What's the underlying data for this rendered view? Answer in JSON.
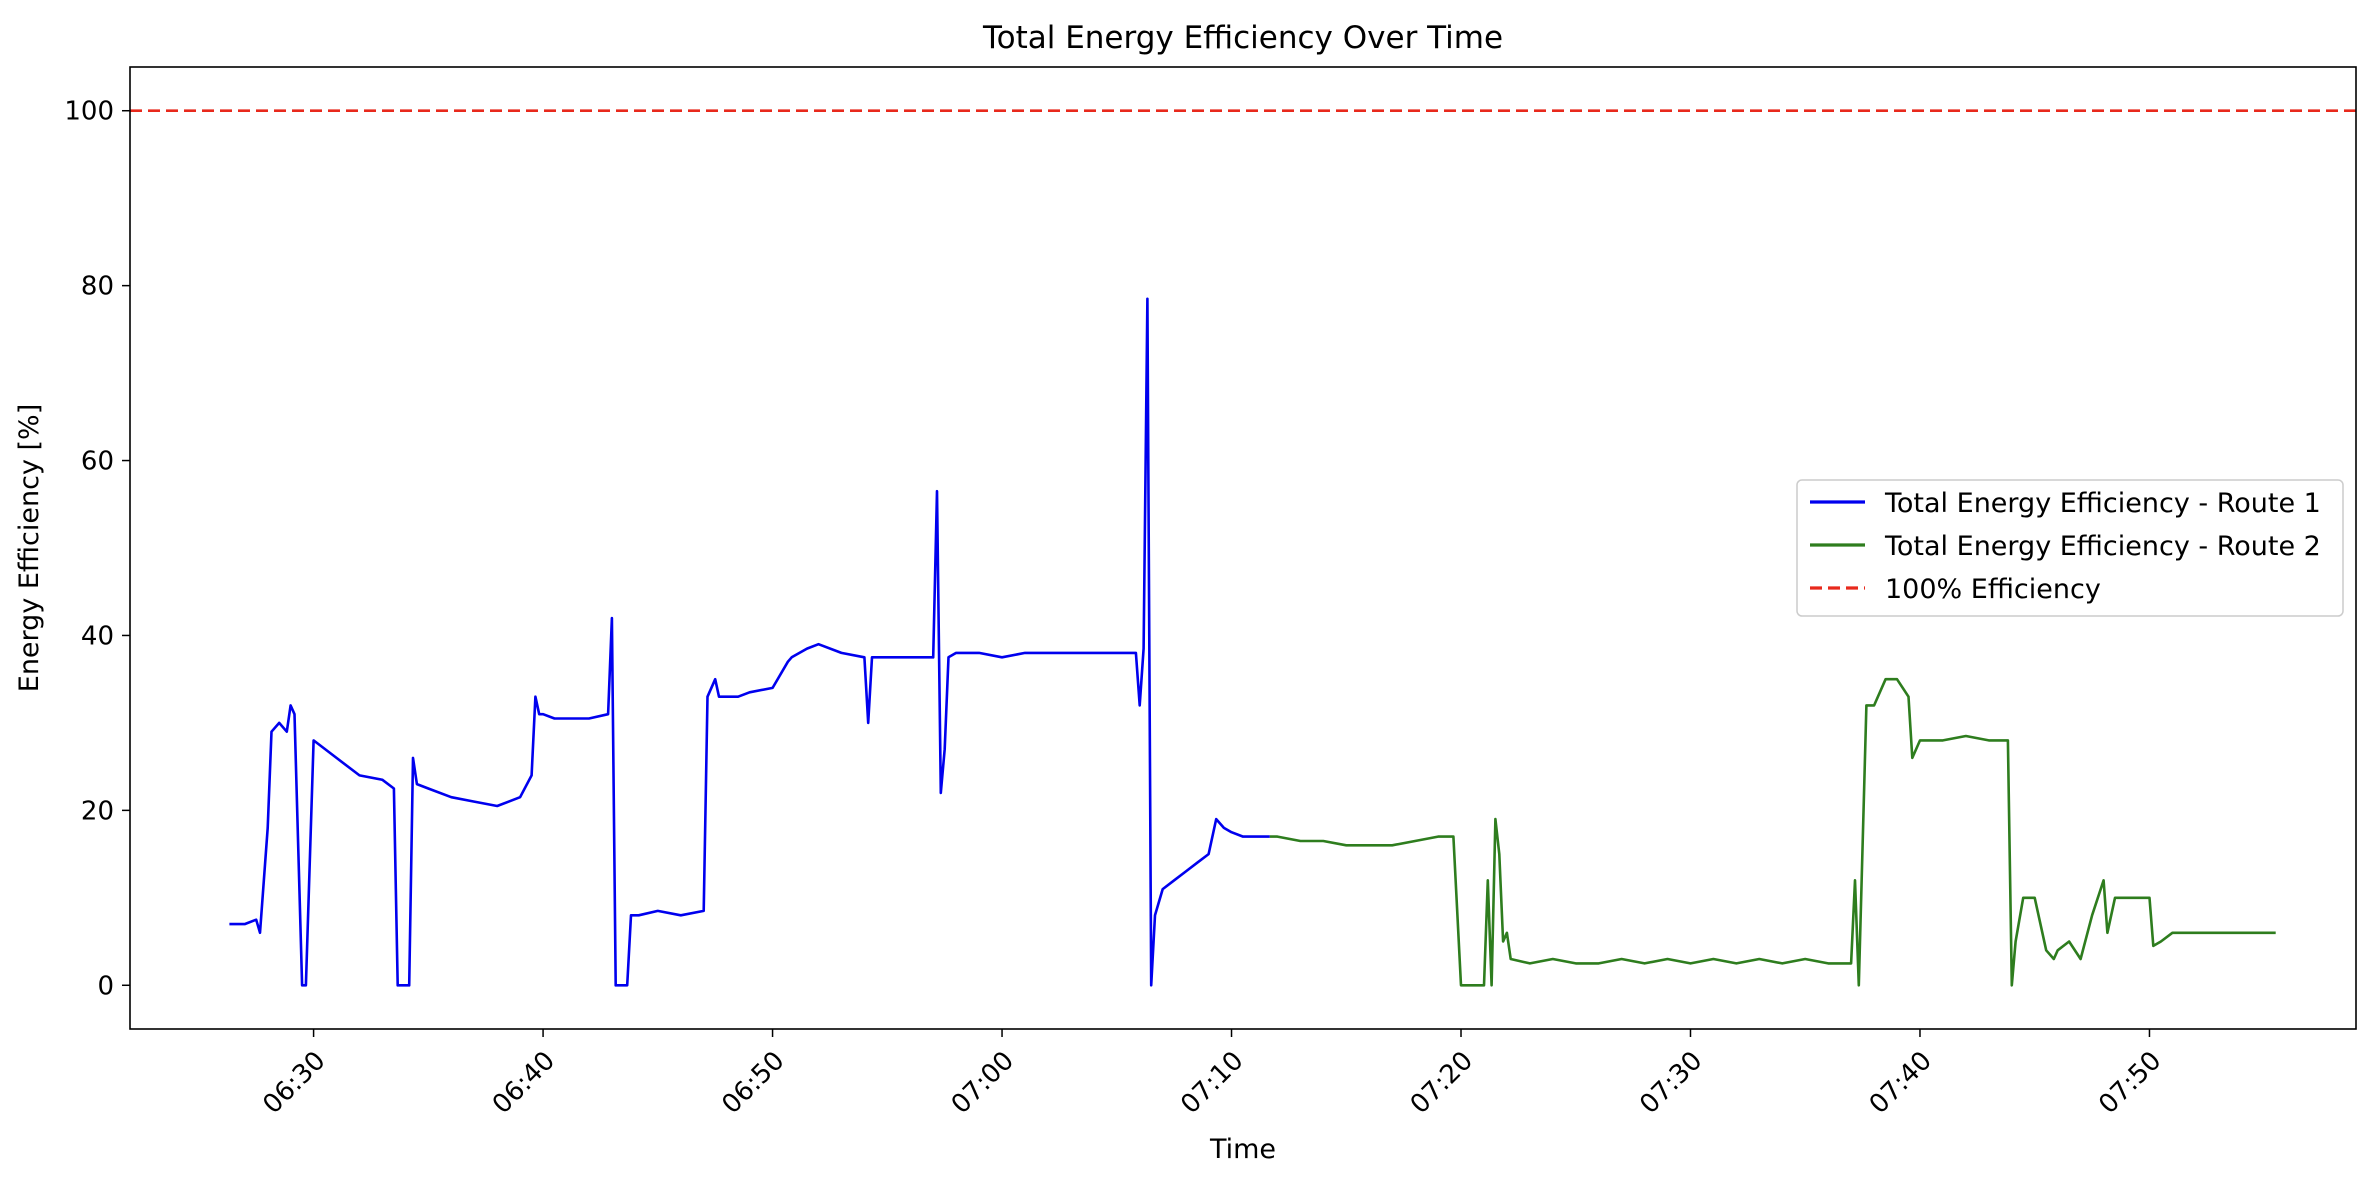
{
  "chart_data": {
    "type": "line",
    "title": "Total Energy Efficiency Over Time",
    "xlabel": "Time",
    "ylabel": "Energy Efficiency [%]",
    "xlim": [
      "06:22",
      "07:59"
    ],
    "ylim": [
      -5,
      105
    ],
    "x_ticks": [
      "06:30",
      "06:40",
      "06:50",
      "07:00",
      "07:10",
      "07:20",
      "07:30",
      "07:40",
      "07:50"
    ],
    "y_ticks": [
      0,
      20,
      40,
      60,
      80,
      100
    ],
    "legend_position": "center-right",
    "grid": false,
    "reference_line": {
      "name": "100% Efficiency",
      "y": 100,
      "color": "#e8291c",
      "style": "dashed"
    },
    "series": [
      {
        "name": "Total Energy Efficiency - Route 1",
        "color": "#0000ee",
        "x": [
          "06:26:20",
          "06:27:00",
          "06:27:30",
          "06:27:40",
          "06:28:00",
          "06:28:10",
          "06:28:30",
          "06:28:50",
          "06:29:00",
          "06:29:10",
          "06:29:30",
          "06:29:40",
          "06:30:00",
          "06:31:00",
          "06:32:00",
          "06:33:00",
          "06:33:30",
          "06:33:40",
          "06:34:10",
          "06:34:20",
          "06:34:30",
          "06:35:00",
          "06:36:00",
          "06:37:00",
          "06:38:00",
          "06:39:00",
          "06:39:30",
          "06:39:40",
          "06:39:50",
          "06:40:00",
          "06:40:30",
          "06:41:00",
          "06:42:00",
          "06:42:50",
          "06:43:00",
          "06:43:10",
          "06:43:40",
          "06:43:50",
          "06:44:10",
          "06:45:00",
          "06:46:00",
          "06:47:00",
          "06:47:10",
          "06:47:30",
          "06:47:40",
          "06:48:00",
          "06:48:30",
          "06:49:00",
          "06:50:00",
          "06:50:40",
          "06:50:50",
          "06:51:30",
          "06:52:00",
          "06:53:00",
          "06:54:00",
          "06:54:10",
          "06:54:20",
          "06:55:00",
          "06:56:00",
          "06:57:00",
          "06:57:10",
          "06:57:20",
          "06:57:30",
          "06:57:40",
          "06:58:00",
          "06:59:00",
          "07:00:00",
          "07:01:00",
          "07:02:00",
          "07:03:00",
          "07:04:00",
          "07:05:00",
          "07:05:50",
          "07:06:00",
          "07:06:10",
          "07:06:20",
          "07:06:30",
          "07:06:40",
          "07:07:00",
          "07:07:30",
          "07:08:00",
          "07:08:30",
          "07:09:00",
          "07:09:20",
          "07:09:40",
          "07:10:00",
          "07:10:30",
          "07:11:00",
          "07:11:40"
        ],
        "y": [
          7,
          7,
          7.5,
          6,
          18,
          29,
          30,
          29,
          32,
          31,
          0,
          0,
          28,
          26,
          24,
          23.5,
          22.5,
          0,
          0,
          26,
          23,
          22.5,
          21.5,
          21,
          20.5,
          21.5,
          24,
          33,
          31,
          31,
          30.5,
          30.5,
          30.5,
          31,
          42,
          0,
          0,
          8,
          8,
          8.5,
          8,
          8.5,
          33,
          35,
          33,
          33,
          33,
          33.5,
          34,
          37,
          37.5,
          38.5,
          39,
          38,
          37.5,
          30,
          37.5,
          37.5,
          37.5,
          37.5,
          56.5,
          22,
          27,
          37.5,
          38,
          38,
          37.5,
          38,
          38,
          38,
          38,
          38,
          38,
          32,
          38.5,
          78.5,
          0,
          8,
          11,
          12,
          13,
          14,
          15,
          19,
          18,
          17.5,
          17,
          17,
          17
        ]
      },
      {
        "name": "Total Energy Efficiency - Route 2",
        "color": "#2e7d1e",
        "x": [
          "07:11:40",
          "07:12:00",
          "07:13:00",
          "07:14:00",
          "07:15:00",
          "07:16:00",
          "07:17:00",
          "07:18:00",
          "07:19:00",
          "07:19:40",
          "07:20:00",
          "07:21:00",
          "07:21:10",
          "07:21:20",
          "07:21:30",
          "07:21:40",
          "07:21:50",
          "07:22:00",
          "07:22:10",
          "07:23:00",
          "07:24:00",
          "07:25:00",
          "07:26:00",
          "07:27:00",
          "07:28:00",
          "07:29:00",
          "07:30:00",
          "07:31:00",
          "07:32:00",
          "07:33:00",
          "07:34:00",
          "07:35:00",
          "07:36:00",
          "07:37:00",
          "07:37:10",
          "07:37:20",
          "07:37:40",
          "07:38:00",
          "07:38:30",
          "07:39:00",
          "07:39:30",
          "07:39:40",
          "07:40:00",
          "07:41:00",
          "07:42:00",
          "07:43:00",
          "07:43:30",
          "07:43:50",
          "07:44:00",
          "07:44:10",
          "07:44:30",
          "07:45:00",
          "07:45:30",
          "07:45:50",
          "07:46:00",
          "07:46:30",
          "07:47:00",
          "07:47:30",
          "07:48:00",
          "07:48:10",
          "07:48:30",
          "07:49:00",
          "07:50:00",
          "07:50:10",
          "07:50:30",
          "07:51:00",
          "07:52:00",
          "07:53:00",
          "07:54:00",
          "07:55:30"
        ],
        "y": [
          17,
          17,
          16.5,
          16.5,
          16,
          16,
          16,
          16.5,
          17,
          17,
          0,
          0,
          12,
          0,
          19,
          15,
          5,
          6,
          3,
          2.5,
          3,
          2.5,
          2.5,
          3,
          2.5,
          3,
          2.5,
          3,
          2.5,
          3,
          2.5,
          3,
          2.5,
          2.5,
          12,
          0,
          32,
          32,
          35,
          35,
          33,
          26,
          28,
          28,
          28.5,
          28,
          28,
          28,
          0,
          5,
          10,
          10,
          4,
          3,
          4,
          5,
          3,
          8,
          12,
          6,
          10,
          10,
          10,
          4.5,
          5,
          6,
          6,
          6,
          6,
          6
        ]
      }
    ]
  }
}
